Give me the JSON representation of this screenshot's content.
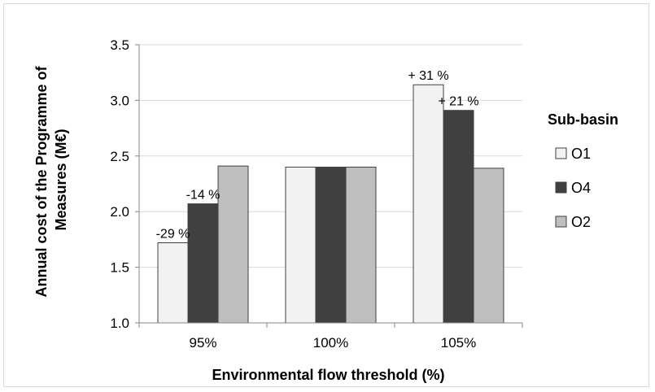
{
  "chart_data": {
    "type": "bar",
    "title": "",
    "xlabel": "Environmental flow threshold (%)",
    "ylabel_line1": "Annual  cost of the Programme of",
    "ylabel_line2": "Measures (M€)",
    "categories": [
      "95%",
      "100%",
      "105%"
    ],
    "ylim": [
      1.0,
      3.5
    ],
    "yticks": [
      "1.0",
      "1.5",
      "2.0",
      "2.5",
      "3.0",
      "3.5"
    ],
    "ytick_values": [
      1.0,
      1.5,
      2.0,
      2.5,
      3.0,
      3.5
    ],
    "grid": true,
    "legend": {
      "title": "Sub-basin",
      "placement": "right"
    },
    "series": [
      {
        "name": "O1",
        "color": "#f2f2f2",
        "values": [
          1.72,
          2.4,
          3.14
        ],
        "labels": [
          "-29 %",
          "",
          "+ 31 %"
        ]
      },
      {
        "name": "O4",
        "color": "#404040",
        "values": [
          2.07,
          2.4,
          2.91
        ],
        "labels": [
          "-14 %",
          "",
          "+ 21 %"
        ]
      },
      {
        "name": "O2",
        "color": "#bfbfbf",
        "values": [
          2.41,
          2.4,
          2.39
        ],
        "labels": [
          "",
          "",
          ""
        ]
      }
    ]
  }
}
